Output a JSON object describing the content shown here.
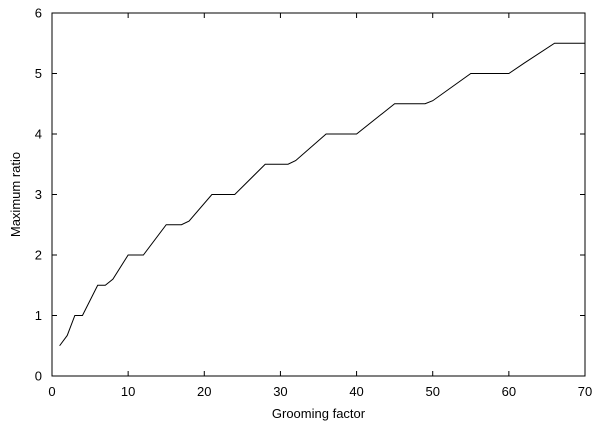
{
  "chart_data": {
    "type": "line",
    "title": "",
    "xlabel": "Grooming factor",
    "ylabel": "Maximum ratio",
    "xlim": [
      0,
      70
    ],
    "ylim": [
      0,
      6
    ],
    "x_ticks": [
      "0",
      "10",
      "20",
      "30",
      "40",
      "50",
      "60",
      "70"
    ],
    "y_ticks": [
      "0",
      "1",
      "2",
      "3",
      "4",
      "5",
      "6"
    ],
    "grid": false,
    "legend": "none",
    "series": [
      {
        "color": "#000000",
        "x": [
          1,
          2,
          3,
          4,
          6,
          7,
          8,
          10,
          12,
          15,
          17,
          18,
          21,
          24,
          28,
          31,
          32,
          36,
          40,
          45,
          49,
          50,
          55,
          60,
          62,
          66,
          70
        ],
        "y": [
          0.5,
          0.67,
          1.0,
          1.0,
          1.5,
          1.5,
          1.6,
          2.0,
          2.0,
          2.5,
          2.5,
          2.56,
          3.0,
          3.0,
          3.5,
          3.5,
          3.56,
          4.0,
          4.0,
          4.5,
          4.5,
          4.55,
          5.0,
          5.0,
          5.17,
          5.5,
          5.5
        ]
      }
    ]
  }
}
